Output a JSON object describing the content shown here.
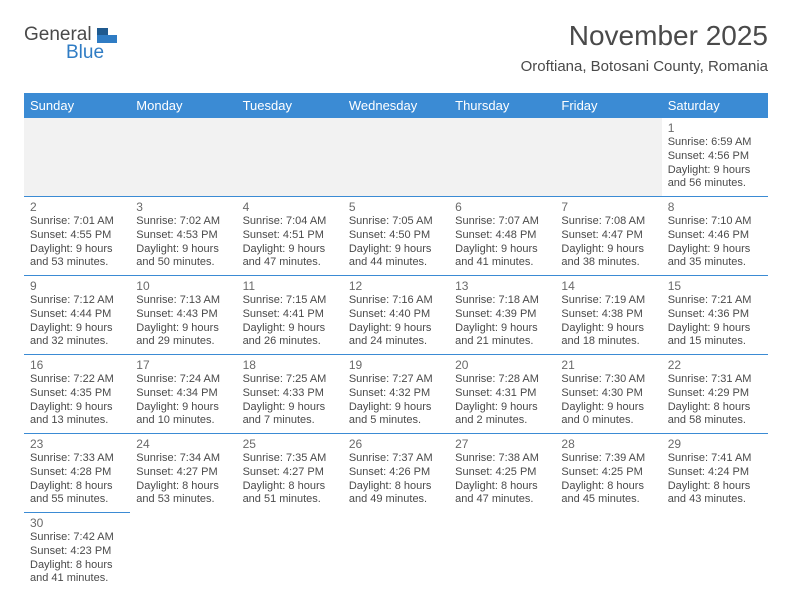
{
  "logo": {
    "general": "General",
    "blue": "Blue"
  },
  "title": "November 2025",
  "location": "Oroftiana, Botosani County, Romania",
  "colors": {
    "header_bg": "#3b8bd4",
    "header_text": "#ffffff",
    "cell_border": "#3b8bd4",
    "text": "#4a4a4a",
    "logo_blue": "#2f7cc4",
    "first_row_bg": "#f2f2f2"
  },
  "days": [
    "Sunday",
    "Monday",
    "Tuesday",
    "Wednesday",
    "Thursday",
    "Friday",
    "Saturday"
  ],
  "weeks": [
    [
      null,
      null,
      null,
      null,
      null,
      null,
      {
        "n": "1",
        "sr": "Sunrise: 6:59 AM",
        "ss": "Sunset: 4:56 PM",
        "d1": "Daylight: 9 hours",
        "d2": "and 56 minutes."
      }
    ],
    [
      {
        "n": "2",
        "sr": "Sunrise: 7:01 AM",
        "ss": "Sunset: 4:55 PM",
        "d1": "Daylight: 9 hours",
        "d2": "and 53 minutes."
      },
      {
        "n": "3",
        "sr": "Sunrise: 7:02 AM",
        "ss": "Sunset: 4:53 PM",
        "d1": "Daylight: 9 hours",
        "d2": "and 50 minutes."
      },
      {
        "n": "4",
        "sr": "Sunrise: 7:04 AM",
        "ss": "Sunset: 4:51 PM",
        "d1": "Daylight: 9 hours",
        "d2": "and 47 minutes."
      },
      {
        "n": "5",
        "sr": "Sunrise: 7:05 AM",
        "ss": "Sunset: 4:50 PM",
        "d1": "Daylight: 9 hours",
        "d2": "and 44 minutes."
      },
      {
        "n": "6",
        "sr": "Sunrise: 7:07 AM",
        "ss": "Sunset: 4:48 PM",
        "d1": "Daylight: 9 hours",
        "d2": "and 41 minutes."
      },
      {
        "n": "7",
        "sr": "Sunrise: 7:08 AM",
        "ss": "Sunset: 4:47 PM",
        "d1": "Daylight: 9 hours",
        "d2": "and 38 minutes."
      },
      {
        "n": "8",
        "sr": "Sunrise: 7:10 AM",
        "ss": "Sunset: 4:46 PM",
        "d1": "Daylight: 9 hours",
        "d2": "and 35 minutes."
      }
    ],
    [
      {
        "n": "9",
        "sr": "Sunrise: 7:12 AM",
        "ss": "Sunset: 4:44 PM",
        "d1": "Daylight: 9 hours",
        "d2": "and 32 minutes."
      },
      {
        "n": "10",
        "sr": "Sunrise: 7:13 AM",
        "ss": "Sunset: 4:43 PM",
        "d1": "Daylight: 9 hours",
        "d2": "and 29 minutes."
      },
      {
        "n": "11",
        "sr": "Sunrise: 7:15 AM",
        "ss": "Sunset: 4:41 PM",
        "d1": "Daylight: 9 hours",
        "d2": "and 26 minutes."
      },
      {
        "n": "12",
        "sr": "Sunrise: 7:16 AM",
        "ss": "Sunset: 4:40 PM",
        "d1": "Daylight: 9 hours",
        "d2": "and 24 minutes."
      },
      {
        "n": "13",
        "sr": "Sunrise: 7:18 AM",
        "ss": "Sunset: 4:39 PM",
        "d1": "Daylight: 9 hours",
        "d2": "and 21 minutes."
      },
      {
        "n": "14",
        "sr": "Sunrise: 7:19 AM",
        "ss": "Sunset: 4:38 PM",
        "d1": "Daylight: 9 hours",
        "d2": "and 18 minutes."
      },
      {
        "n": "15",
        "sr": "Sunrise: 7:21 AM",
        "ss": "Sunset: 4:36 PM",
        "d1": "Daylight: 9 hours",
        "d2": "and 15 minutes."
      }
    ],
    [
      {
        "n": "16",
        "sr": "Sunrise: 7:22 AM",
        "ss": "Sunset: 4:35 PM",
        "d1": "Daylight: 9 hours",
        "d2": "and 13 minutes."
      },
      {
        "n": "17",
        "sr": "Sunrise: 7:24 AM",
        "ss": "Sunset: 4:34 PM",
        "d1": "Daylight: 9 hours",
        "d2": "and 10 minutes."
      },
      {
        "n": "18",
        "sr": "Sunrise: 7:25 AM",
        "ss": "Sunset: 4:33 PM",
        "d1": "Daylight: 9 hours",
        "d2": "and 7 minutes."
      },
      {
        "n": "19",
        "sr": "Sunrise: 7:27 AM",
        "ss": "Sunset: 4:32 PM",
        "d1": "Daylight: 9 hours",
        "d2": "and 5 minutes."
      },
      {
        "n": "20",
        "sr": "Sunrise: 7:28 AM",
        "ss": "Sunset: 4:31 PM",
        "d1": "Daylight: 9 hours",
        "d2": "and 2 minutes."
      },
      {
        "n": "21",
        "sr": "Sunrise: 7:30 AM",
        "ss": "Sunset: 4:30 PM",
        "d1": "Daylight: 9 hours",
        "d2": "and 0 minutes."
      },
      {
        "n": "22",
        "sr": "Sunrise: 7:31 AM",
        "ss": "Sunset: 4:29 PM",
        "d1": "Daylight: 8 hours",
        "d2": "and 58 minutes."
      }
    ],
    [
      {
        "n": "23",
        "sr": "Sunrise: 7:33 AM",
        "ss": "Sunset: 4:28 PM",
        "d1": "Daylight: 8 hours",
        "d2": "and 55 minutes."
      },
      {
        "n": "24",
        "sr": "Sunrise: 7:34 AM",
        "ss": "Sunset: 4:27 PM",
        "d1": "Daylight: 8 hours",
        "d2": "and 53 minutes."
      },
      {
        "n": "25",
        "sr": "Sunrise: 7:35 AM",
        "ss": "Sunset: 4:27 PM",
        "d1": "Daylight: 8 hours",
        "d2": "and 51 minutes."
      },
      {
        "n": "26",
        "sr": "Sunrise: 7:37 AM",
        "ss": "Sunset: 4:26 PM",
        "d1": "Daylight: 8 hours",
        "d2": "and 49 minutes."
      },
      {
        "n": "27",
        "sr": "Sunrise: 7:38 AM",
        "ss": "Sunset: 4:25 PM",
        "d1": "Daylight: 8 hours",
        "d2": "and 47 minutes."
      },
      {
        "n": "28",
        "sr": "Sunrise: 7:39 AM",
        "ss": "Sunset: 4:25 PM",
        "d1": "Daylight: 8 hours",
        "d2": "and 45 minutes."
      },
      {
        "n": "29",
        "sr": "Sunrise: 7:41 AM",
        "ss": "Sunset: 4:24 PM",
        "d1": "Daylight: 8 hours",
        "d2": "and 43 minutes."
      }
    ],
    [
      {
        "n": "30",
        "sr": "Sunrise: 7:42 AM",
        "ss": "Sunset: 4:23 PM",
        "d1": "Daylight: 8 hours",
        "d2": "and 41 minutes."
      },
      null,
      null,
      null,
      null,
      null,
      null
    ]
  ]
}
